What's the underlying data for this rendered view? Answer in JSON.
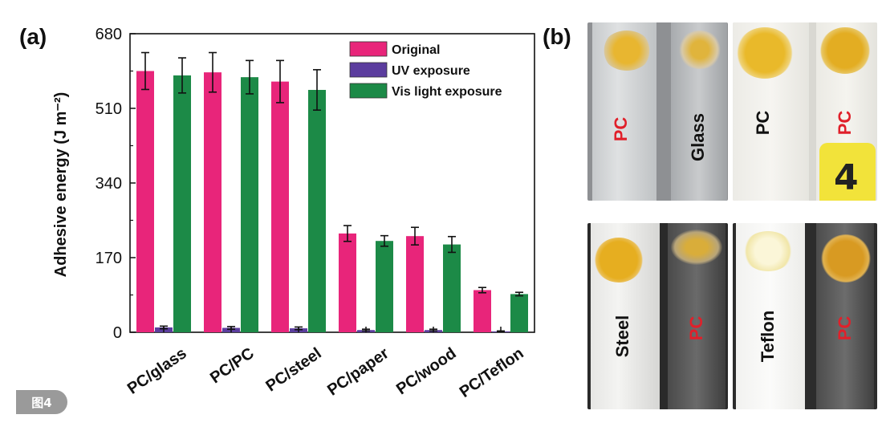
{
  "figure_badge": "图4",
  "panel_a_label": "(a)",
  "panel_b_label": "(b)",
  "chart_data": {
    "type": "bar",
    "title": "",
    "xlabel": "",
    "ylabel": "Adhesive energy (J m⁻²)",
    "ylim": [
      0,
      680
    ],
    "yticks": [
      0,
      170,
      340,
      510,
      680
    ],
    "categories": [
      "PC/glass",
      "PC/PC",
      "PC/steel",
      "PC/paper",
      "PC/wood",
      "PC/Teflon"
    ],
    "legend_position": "top-right",
    "series": [
      {
        "name": "Original",
        "color": "#e8257a",
        "values": [
          595,
          592,
          571,
          225,
          219,
          96
        ],
        "errors": [
          42,
          45,
          48,
          18,
          20,
          6
        ]
      },
      {
        "name": "UV exposure",
        "color": "#5b3d9e",
        "values": [
          11,
          10,
          9,
          5,
          5,
          2
        ],
        "errors": [
          3,
          3,
          3,
          2,
          2,
          1
        ]
      },
      {
        "name": "Vis light exposure",
        "color": "#1c8a47",
        "values": [
          585,
          581,
          552,
          208,
          200,
          87
        ],
        "errors": [
          40,
          38,
          46,
          12,
          18,
          4
        ]
      }
    ]
  },
  "photos": {
    "top_left": {
      "left_label": "PC",
      "right_label": "Glass"
    },
    "top_right": {
      "left_label": "PC",
      "right_label": "PC",
      "tag": "4"
    },
    "bottom_left": {
      "left_label": "Steel",
      "right_label": "PC"
    },
    "bottom_right": {
      "left_label": "Teflon",
      "right_label": "PC"
    }
  },
  "colors": {
    "pc_label": "#e0202a",
    "black_label": "#111111",
    "adhesive_yellow": "#e8b630"
  }
}
